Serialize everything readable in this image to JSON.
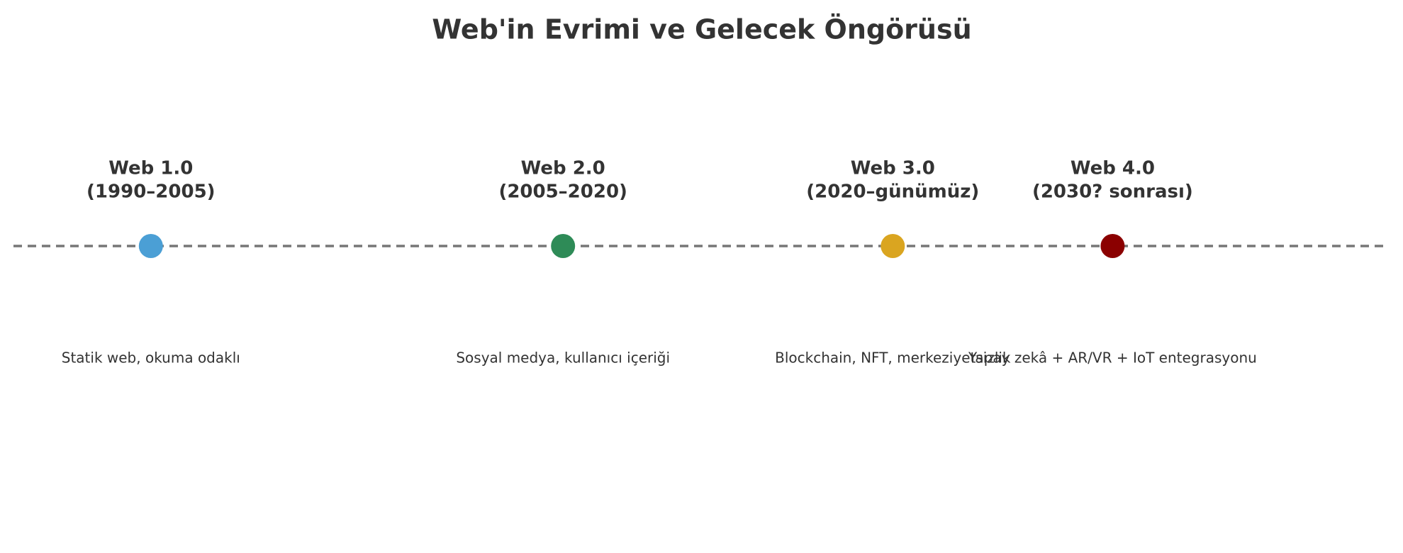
{
  "chart_data": {
    "type": "timeline",
    "title": "Web'in Evrimi ve Gelecek Öngörüsü",
    "x": [
      1,
      4,
      6.4,
      8
    ],
    "xlim": [
      0,
      10
    ],
    "labels": [
      "Web 1.0",
      "Web 2.0",
      "Web 3.0",
      "Web 4.0"
    ],
    "periods": [
      "(1990–2005)",
      "(2005–2020)",
      "(2020–günümüz)",
      "(2030? sonrası)"
    ],
    "descriptions": [
      "Statik web, okuma odaklı",
      "Sosyal medya, kullanıcı içeriği",
      "Blockchain, NFT, merkeziyetsizlik",
      "Yapay zekâ + AR/VR + IoT entegrasyonu"
    ],
    "colors": [
      "#4b9fd5",
      "#2e8b57",
      "#daa520",
      "#8b0000"
    ]
  }
}
